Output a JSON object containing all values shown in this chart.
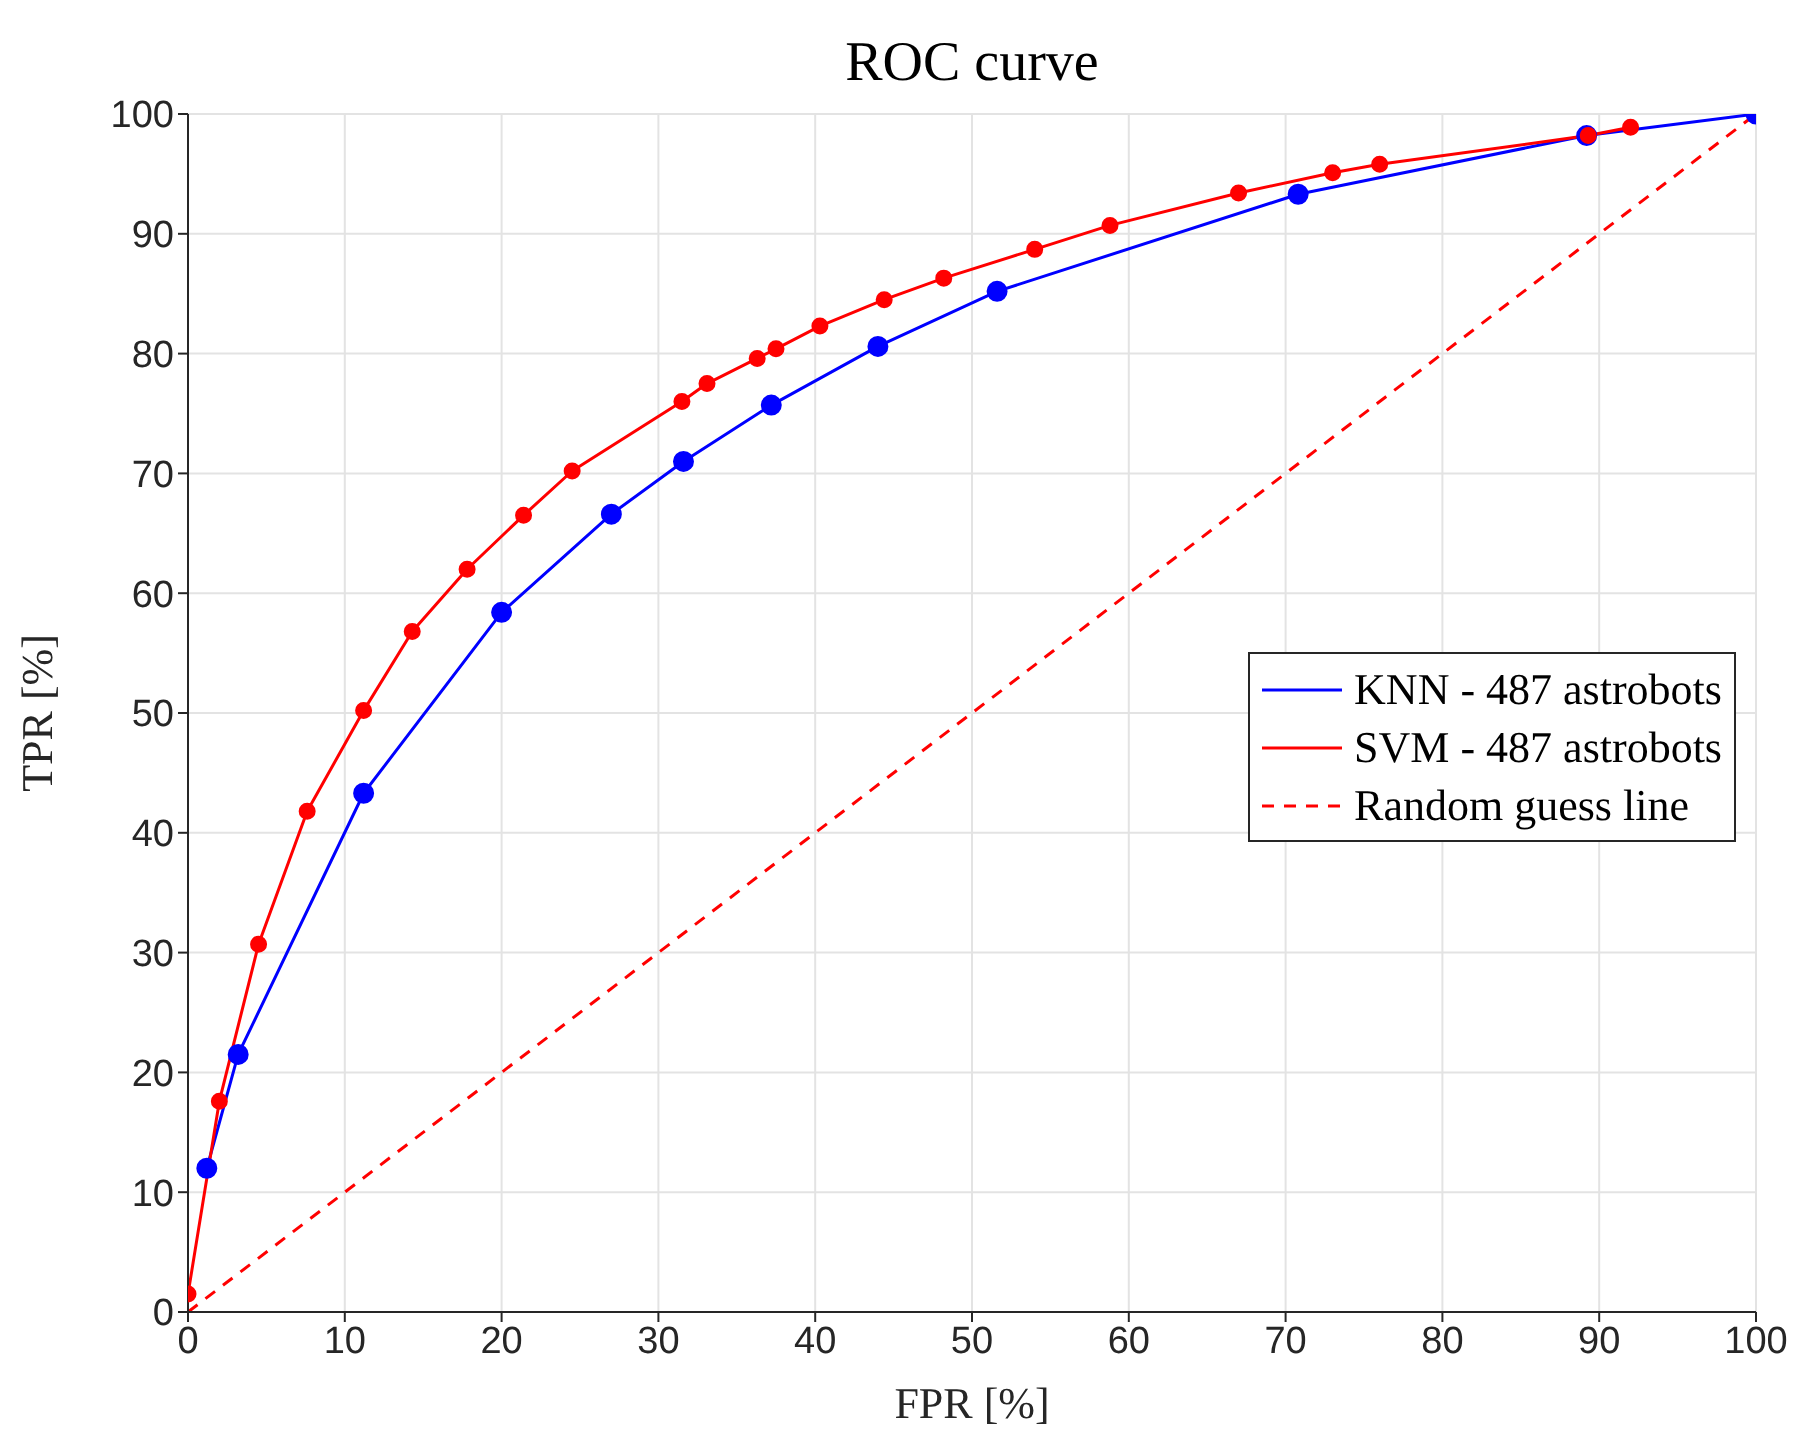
{
  "chart_data": {
    "type": "line",
    "title": "ROC curve",
    "xlabel": "FPR [%]",
    "ylabel": "TPR [%]",
    "xlim": [
      0,
      100
    ],
    "ylim": [
      0,
      100
    ],
    "xticks": [
      0,
      10,
      20,
      30,
      40,
      50,
      60,
      70,
      80,
      90,
      100
    ],
    "yticks": [
      0,
      10,
      20,
      30,
      40,
      50,
      60,
      70,
      80,
      90,
      100
    ],
    "grid": true,
    "legend": "right",
    "series": [
      {
        "name": "KNN - 487 astrobots",
        "color": "#0000ff",
        "marker": "circle",
        "line_style": "solid",
        "x": [
          1.2,
          3.2,
          11.2,
          20,
          27,
          31.6,
          37.2,
          44,
          51.6,
          70.8,
          89.2,
          100
        ],
        "values": [
          12,
          21.5,
          43.3,
          58.4,
          66.6,
          71,
          75.7,
          80.6,
          85.2,
          93.3,
          98.2,
          100
        ]
      },
      {
        "name": "SVM - 487 astrobots",
        "color": "#ff0000",
        "marker": "circle",
        "line_style": "solid",
        "x": [
          0,
          2,
          4.5,
          7.6,
          11.2,
          14.3,
          17.8,
          21.4,
          24.5,
          31.5,
          33.1,
          36.3,
          37.5,
          40.3,
          44.4,
          48.2,
          54,
          58.8,
          67,
          73,
          76,
          89.3,
          92
        ],
        "values": [
          1.5,
          17.6,
          30.7,
          41.8,
          50.2,
          56.8,
          62,
          66.5,
          70.2,
          76,
          77.5,
          79.6,
          80.4,
          82.3,
          84.5,
          86.3,
          88.7,
          90.7,
          93.4,
          95.1,
          95.8,
          98.2,
          98.9
        ]
      },
      {
        "name": "Random guess line",
        "color": "#ff0000",
        "marker": "none",
        "line_style": "dashed",
        "x": [
          0,
          100
        ],
        "values": [
          0,
          100
        ]
      }
    ]
  }
}
